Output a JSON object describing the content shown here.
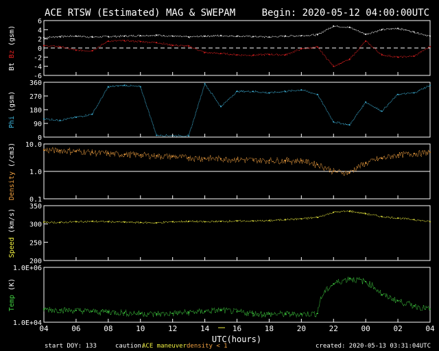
{
  "chart_data": {
    "type": "line",
    "title": "ACE RTSW (Estimated) MAG & SWEPAM",
    "begin": "Begin: 2020-05-12 04:00:00UTC",
    "xlabel": "UTC(hours)",
    "x_ticks": [
      "04",
      "06",
      "08",
      "10",
      "12",
      "14",
      "16",
      "18",
      "20",
      "22",
      "00",
      "02",
      "04"
    ],
    "x_hours": [
      0,
      1,
      2,
      3,
      4,
      5,
      6,
      7,
      8,
      9,
      10,
      11,
      12,
      13,
      14,
      15,
      16,
      17,
      18,
      19,
      20,
      21,
      22,
      23,
      24
    ],
    "footer": {
      "start_doy": "start DOY: 133",
      "caution": "caution:",
      "maneuver": "ACE maneuver",
      "density_note": "density < 1",
      "created": "created: 2020-05-13 03:31:04UTC"
    },
    "colors": {
      "bt": "#ffffff",
      "bz": "#e02020",
      "phi": "#40b8e0",
      "density": "#f0a040",
      "speed": "#f0f040",
      "temp": "#40d040",
      "axis": "#ffffff"
    },
    "panels": [
      {
        "id": "mag",
        "ylabel_parts": [
          "Bt",
          "Bz",
          "(gsm)"
        ],
        "ylim": [
          -6,
          6
        ],
        "scale": "linear",
        "ticks": [
          "6",
          "4",
          "2",
          "0",
          "-2",
          "-4",
          "-6"
        ],
        "tick_values": [
          6,
          4,
          2,
          0,
          -2,
          -4,
          -6
        ],
        "zero_line": true,
        "series": [
          {
            "name": "Bt",
            "color_key": "bt",
            "values": [
              2.3,
              2.5,
              2.6,
              2.4,
              2.5,
              2.6,
              2.7,
              2.8,
              2.6,
              2.4,
              2.6,
              2.7,
              2.6,
              2.5,
              2.4,
              2.6,
              2.7,
              2.9,
              4.8,
              4.5,
              3.0,
              4.0,
              4.3,
              3.5,
              2.6
            ]
          },
          {
            "name": "Bz",
            "color_key": "bz",
            "values": [
              0.5,
              0.3,
              -0.5,
              -0.6,
              1.5,
              1.6,
              1.4,
              1.2,
              0.6,
              0.4,
              -1.0,
              -1.2,
              -1.5,
              -1.6,
              -1.4,
              -1.5,
              -0.2,
              0.2,
              -4.0,
              -2.5,
              1.5,
              -1.5,
              -2.0,
              -1.8,
              0.3
            ]
          }
        ]
      },
      {
        "id": "phi",
        "ylabel_parts": [
          "Phi",
          "(gsm)"
        ],
        "ylim": [
          0,
          360
        ],
        "scale": "linear",
        "ticks": [
          "360",
          "270",
          "180",
          "90",
          "0"
        ],
        "tick_values": [
          360,
          270,
          180,
          90,
          0
        ],
        "series": [
          {
            "name": "Phi",
            "color_key": "phi",
            "values": [
              120,
              110,
              130,
              150,
              330,
              340,
              330,
              12,
              10,
              8,
              350,
              200,
              300,
              300,
              290,
              300,
              310,
              280,
              100,
              80,
              230,
              170,
              280,
              290,
              340
            ]
          }
        ]
      },
      {
        "id": "density",
        "ylabel_parts": [
          "Density",
          "(/cm3)"
        ],
        "ylim": [
          0.1,
          10
        ],
        "scale": "log",
        "ticks": [
          "10.0",
          "1.0",
          "0.1"
        ],
        "tick_values": [
          10,
          1,
          0.1
        ],
        "ref_line": 1,
        "series": [
          {
            "name": "Density",
            "color_key": "density",
            "values": [
              6,
              5.8,
              5.5,
              5,
              4.5,
              4.2,
              4,
              3.7,
              3.5,
              3.2,
              3,
              2.9,
              2.8,
              2.6,
              2.5,
              2.5,
              2.5,
              1.8,
              1.0,
              0.9,
              2,
              3,
              4,
              4.5,
              5
            ]
          }
        ]
      },
      {
        "id": "speed",
        "ylabel_parts": [
          "Speed",
          "(km/s)"
        ],
        "ylim": [
          200,
          350
        ],
        "scale": "linear",
        "ticks": [
          "350",
          "300",
          "250",
          "200"
        ],
        "tick_values": [
          350,
          300,
          250,
          200
        ],
        "series": [
          {
            "name": "Speed",
            "color_key": "speed",
            "values": [
              305,
              304,
              306,
              307,
              306,
              305,
              304,
              303,
              306,
              307,
              306,
              307,
              308,
              308,
              309,
              312,
              314,
              318,
              332,
              335,
              328,
              320,
              316,
              312,
              306
            ]
          }
        ]
      },
      {
        "id": "temp",
        "ylabel_parts": [
          "Temp",
          "(K)"
        ],
        "ylim": [
          10000,
          1000000
        ],
        "scale": "log",
        "ticks": [
          "1.0E+06",
          "1.0E+04"
        ],
        "tick_values": [
          1000000,
          10000
        ],
        "series": [
          {
            "name": "Temp",
            "color_key": "temp",
            "values": [
              30000,
              28000,
              27000,
              25000,
              24000,
              22000,
              21000,
              20000,
              21000,
              23000,
              25000,
              28000,
              24000,
              21000,
              20000,
              20000,
              20000,
              21000,
              250000,
              400000,
              300000,
              100000,
              60000,
              40000,
              30000
            ]
          }
        ]
      }
    ]
  }
}
